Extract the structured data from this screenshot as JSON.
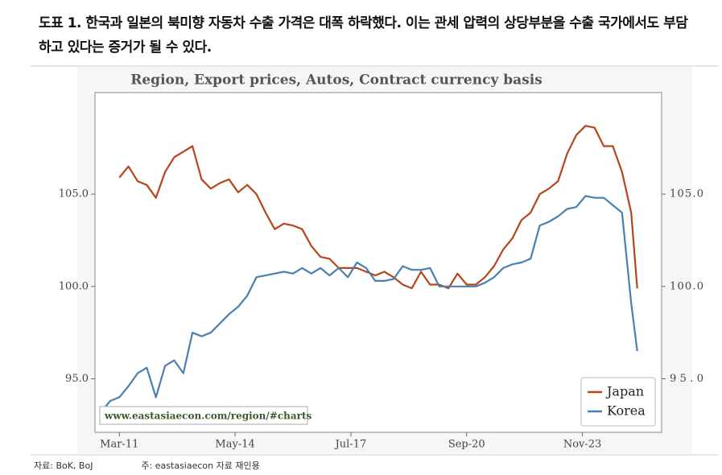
{
  "header": {
    "title": "도표 1. 한국과 일본의 북미향 자동차 수출 가격은 대폭 하락했다. 이는 관세 압력의 상당부분을 수출 국가에서도 부담하고 있다는 증거가 될 수 있다."
  },
  "chart_data": {
    "type": "line",
    "title": "Region, Export prices, Autos, Contract currency basis",
    "watermark": "www.eastasiaecon.com/region/#charts",
    "x": [
      "2010-09",
      "2010-12",
      "2011-03",
      "2011-06",
      "2011-09",
      "2011-12",
      "2012-03",
      "2012-06",
      "2012-09",
      "2012-12",
      "2013-03",
      "2013-06",
      "2013-09",
      "2013-12",
      "2014-03",
      "2014-06",
      "2014-09",
      "2014-12",
      "2015-03",
      "2015-06",
      "2015-09",
      "2015-12",
      "2016-03",
      "2016-06",
      "2016-09",
      "2016-12",
      "2017-03",
      "2017-06",
      "2017-09",
      "2017-12",
      "2018-03",
      "2018-06",
      "2018-09",
      "2018-12",
      "2019-03",
      "2019-06",
      "2019-09",
      "2019-12",
      "2020-03",
      "2020-06",
      "2020-09",
      "2020-12",
      "2021-03",
      "2021-06",
      "2021-09",
      "2021-12",
      "2022-03",
      "2022-06",
      "2022-09",
      "2022-12",
      "2023-03",
      "2023-06",
      "2023-09",
      "2023-12",
      "2024-03",
      "2024-06",
      "2024-09",
      "2024-12",
      "2025-03",
      "2025-05"
    ],
    "series": [
      {
        "name": "Japan",
        "color": "#b5451b",
        "values": [
          null,
          null,
          105.9,
          106.5,
          105.7,
          105.5,
          104.8,
          106.2,
          107.0,
          107.3,
          107.6,
          105.8,
          105.3,
          105.6,
          105.8,
          105.1,
          105.5,
          105.0,
          104.0,
          103.1,
          103.4,
          103.3,
          103.1,
          102.2,
          101.6,
          101.5,
          101.0,
          101.0,
          101.0,
          100.8,
          100.6,
          100.8,
          100.5,
          100.1,
          99.9,
          100.8,
          100.1,
          100.1,
          99.9,
          100.7,
          100.1,
          100.1,
          100.5,
          101.1,
          102.0,
          102.6,
          103.6,
          104.0,
          105.0,
          105.3,
          105.7,
          107.2,
          108.2,
          108.7,
          108.6,
          107.6,
          107.6,
          106.2,
          104.0,
          99.9
        ]
      },
      {
        "name": "Korea",
        "color": "#4a7fb0",
        "values": [
          93.2,
          93.8,
          94.0,
          94.6,
          95.3,
          95.6,
          94.0,
          95.7,
          96.0,
          95.3,
          97.5,
          97.3,
          97.5,
          98.0,
          98.5,
          98.9,
          99.5,
          100.5,
          100.6,
          100.7,
          100.8,
          100.7,
          101.0,
          100.7,
          101.0,
          100.6,
          101.0,
          100.5,
          101.3,
          101.0,
          100.3,
          100.3,
          100.4,
          101.1,
          100.9,
          100.9,
          101.0,
          100.0,
          100.0,
          100.0,
          100.0,
          100.0,
          100.2,
          100.5,
          101.0,
          101.2,
          101.3,
          101.5,
          103.3,
          103.5,
          103.8,
          104.2,
          104.3,
          104.9,
          104.8,
          104.8,
          104.4,
          104.0,
          99.1,
          96.5
        ]
      }
    ],
    "xlim": [
      "2010-07",
      "2026-01"
    ],
    "xticks": [
      {
        "value": "2011-03",
        "label": "Mar-11"
      },
      {
        "value": "2014-05",
        "label": "May-14"
      },
      {
        "value": "2017-07",
        "label": "Jul-17"
      },
      {
        "value": "2020-09",
        "label": "Sep-20"
      },
      {
        "value": "2023-11",
        "label": "Nov-23"
      }
    ],
    "ylim": [
      92.1,
      110.5
    ],
    "yticks": [
      {
        "value": 95,
        "label": "95.0"
      },
      {
        "value": 100,
        "label": "100.0"
      },
      {
        "value": 105,
        "label": "105.0"
      }
    ],
    "legend": "lower right"
  },
  "footer": {
    "source": "자료: BoK, BoJ",
    "note": "주: eastasiaecon 자료 재인용"
  }
}
